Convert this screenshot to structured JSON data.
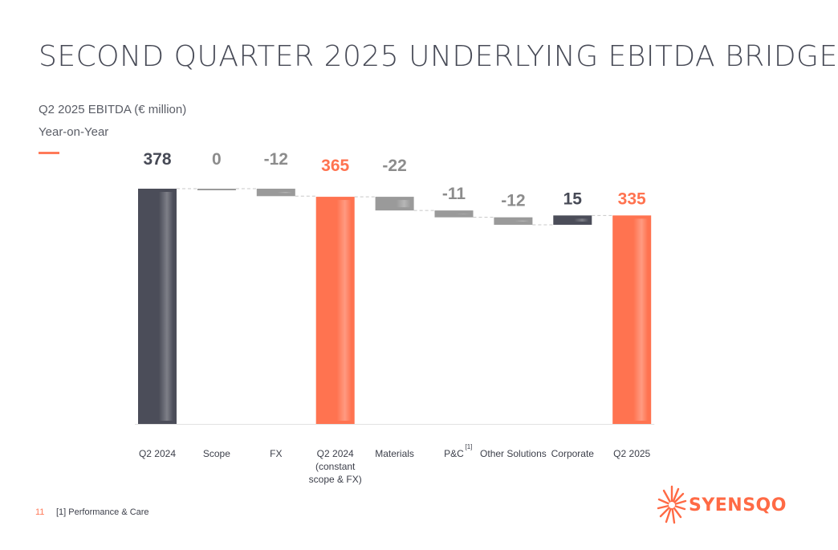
{
  "page": {
    "title": "SECOND QUARTER 2025 UNDERLYING EBITDA BRIDGE",
    "subtitle": "Q2 2025 EBITDA (€ million)",
    "subtitle2": "Year-on-Year",
    "page_number": "11",
    "footnote": "[1] Performance & Care",
    "brand": "SYENSQO"
  },
  "colors": {
    "total_dark": "#4b4d59",
    "total_orange": "#ff7350",
    "delta_gray": "#9a9a9a",
    "positive_dark": "#4b4d59",
    "label_dark": "#474a56",
    "label_gray": "#8c8c8c",
    "label_orange": "#ff7350",
    "accent": "#ff7a59"
  },
  "chart_data": {
    "type": "waterfall",
    "categories": [
      "Q2 2024",
      "Scope",
      "FX",
      "Q2 2024\n(constant\nscope & FX)",
      "Materials",
      "P&C",
      "Other Solutions",
      "Corporate",
      "Q2 2025"
    ],
    "category_footnotes": [
      "",
      "",
      "",
      "",
      "",
      "[1]",
      "",
      "",
      ""
    ],
    "values": [
      378,
      0,
      -12,
      365,
      -22,
      -11,
      -12,
      15,
      335
    ],
    "value_labels": [
      "378",
      "0",
      "-12",
      "365",
      "-22",
      "-11",
      "-12",
      "15",
      "335"
    ],
    "kinds": [
      "total",
      "delta",
      "delta",
      "total",
      "delta",
      "delta",
      "delta",
      "delta",
      "total"
    ],
    "highlight": [
      false,
      false,
      false,
      true,
      false,
      false,
      false,
      false,
      true
    ],
    "ylim": [
      0,
      380
    ]
  }
}
